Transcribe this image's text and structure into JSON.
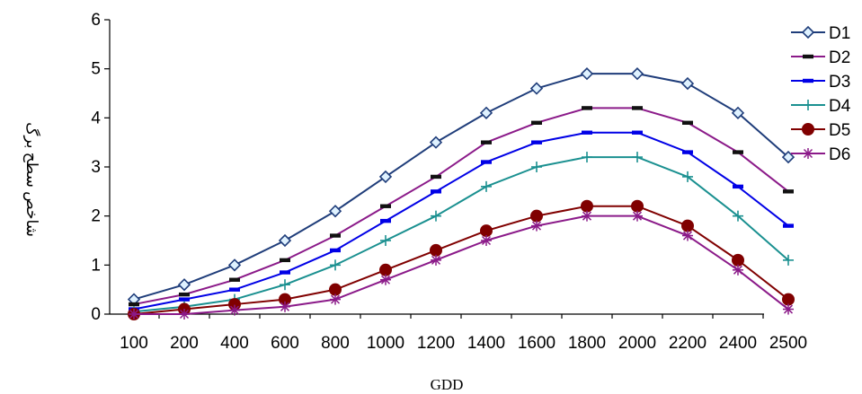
{
  "chart_data": {
    "type": "line",
    "xlabel": "GDD",
    "ylabel": "شاخص سطح برگ",
    "categories": [
      "100",
      "200",
      "400",
      "600",
      "800",
      "1000",
      "1200",
      "1400",
      "1600",
      "1800",
      "2000",
      "2200",
      "2400",
      "2500"
    ],
    "ylim": [
      0,
      6
    ],
    "yticks": [
      "0",
      "1",
      "2",
      "3",
      "4",
      "5",
      "6"
    ],
    "grid": false,
    "legend_position": "right",
    "series": [
      {
        "name": "D1",
        "color": "#1f3d7a",
        "marker": "diamond",
        "values": [
          0.3,
          0.6,
          1.0,
          1.5,
          2.1,
          2.8,
          3.5,
          4.1,
          4.6,
          4.9,
          4.9,
          4.7,
          4.1,
          3.2
        ]
      },
      {
        "name": "D2",
        "color": "#8b1a89",
        "marker": "dash",
        "values": [
          0.2,
          0.4,
          0.7,
          1.1,
          1.6,
          2.2,
          2.8,
          3.5,
          3.9,
          4.2,
          4.2,
          3.9,
          3.3,
          2.5
        ]
      },
      {
        "name": "D3",
        "color": "#0000e6",
        "marker": "dash",
        "values": [
          0.1,
          0.3,
          0.5,
          0.85,
          1.3,
          1.9,
          2.5,
          3.1,
          3.5,
          3.7,
          3.7,
          3.3,
          2.6,
          1.8
        ]
      },
      {
        "name": "D4",
        "color": "#1a9090",
        "marker": "plus",
        "values": [
          0.05,
          0.15,
          0.3,
          0.6,
          1.0,
          1.5,
          2.0,
          2.6,
          3.0,
          3.2,
          3.2,
          2.8,
          2.0,
          1.1
        ]
      },
      {
        "name": "D5",
        "color": "#800000",
        "marker": "circle",
        "values": [
          0.0,
          0.1,
          0.2,
          0.3,
          0.5,
          0.9,
          1.3,
          1.7,
          2.0,
          2.2,
          2.2,
          1.8,
          1.1,
          0.3
        ]
      },
      {
        "name": "D6",
        "color": "#8b1a89",
        "marker": "star",
        "values": [
          0.0,
          0.0,
          0.08,
          0.15,
          0.3,
          0.7,
          1.1,
          1.5,
          1.8,
          2.0,
          2.0,
          1.6,
          0.9,
          0.1
        ]
      }
    ]
  }
}
